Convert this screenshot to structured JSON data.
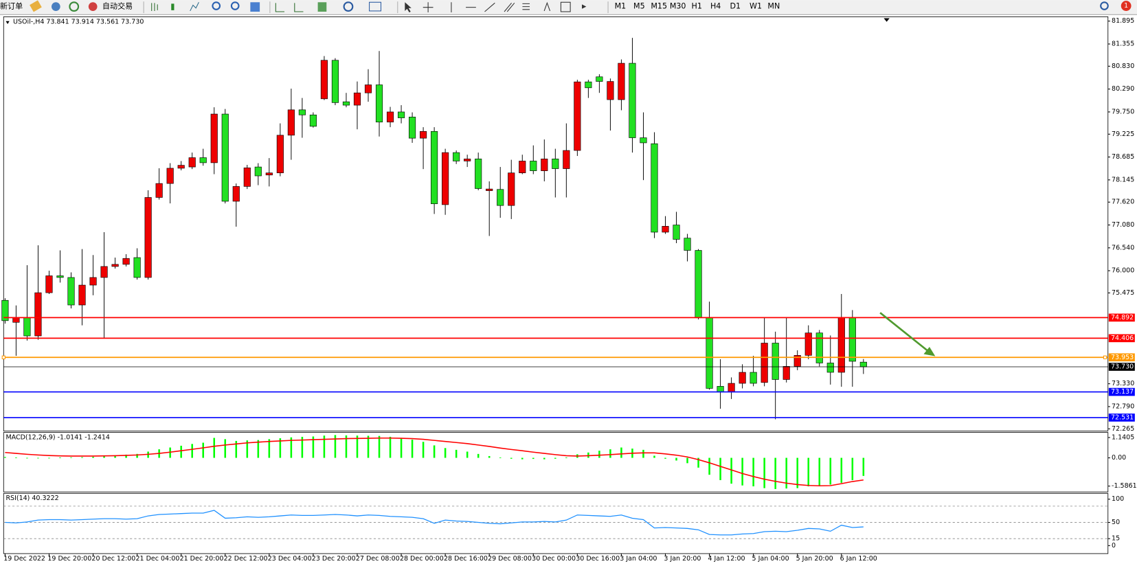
{
  "toolbar": {
    "new_order": "新订单",
    "auto_trading": "自动交易",
    "timeframes": [
      "M1",
      "M5",
      "M15",
      "M30",
      "H1",
      "H4",
      "D1",
      "W1",
      "MN"
    ],
    "notifications": "1"
  },
  "chart_data": [
    {
      "type": "candlestick",
      "title": "USOil-,H4  73.841 73.914 73.561 73.730",
      "categories": [
        "19 Dec 2022",
        null,
        null,
        null,
        "19 Dec 20:00",
        null,
        null,
        null,
        "20 Dec 12:00",
        null,
        null,
        null,
        "21 Dec 04:00",
        null,
        null,
        null,
        "21 Dec 20:00",
        null,
        null,
        null,
        "22 Dec 12:00",
        null,
        null,
        null,
        "23 Dec 04:00",
        null,
        null,
        null,
        "23 Dec 20:00",
        null,
        null,
        null,
        "27 Dec 08:00",
        null,
        null,
        null,
        "28 Dec 00:00",
        null,
        null,
        null,
        "28 Dec 16:00",
        null,
        null,
        null,
        "29 Dec 08:00",
        null,
        null,
        null,
        "30 Dec 00:00",
        null,
        null,
        null,
        "30 Dec 16:00",
        null,
        null,
        null,
        "3 Jan 04:00",
        null,
        null,
        null,
        "3 Jan 20:00",
        null,
        null,
        null,
        "4 Jan 12:00",
        null,
        null,
        null,
        "5 Jan 04:00",
        null,
        null,
        null,
        "5 Jan 20:00",
        null,
        null,
        null,
        "6 Jan 12:00",
        null,
        null
      ],
      "open": [
        75.3,
        74.78,
        74.89,
        74.46,
        75.48,
        75.88,
        75.84,
        75.19,
        75.66,
        75.84,
        76.1,
        76.15,
        76.31,
        75.84,
        77.73,
        78.06,
        78.42,
        78.45,
        78.67,
        78.55,
        79.7,
        77.64,
        77.99,
        78.45,
        78.26,
        78.31,
        79.2,
        79.8,
        79.68,
        80.06,
        80.97,
        79.99,
        79.91,
        80.2,
        80.39,
        79.51,
        79.75,
        79.63,
        79.13,
        79.29,
        77.56,
        78.79,
        78.59,
        78.64,
        77.89,
        77.92,
        77.54,
        78.31,
        78.59,
        78.36,
        78.64,
        78.41,
        78.84,
        80.46,
        80.58,
        80.04,
        80.04,
        80.9,
        79.14,
        79.0,
        76.91,
        77.08,
        76.77,
        76.48,
        74.9,
        73.27,
        73.14,
        73.34,
        73.6,
        73.36,
        74.29,
        73.43,
        73.74,
        74.0,
        74.53,
        73.82,
        73.6,
        74.9,
        73.841
      ],
      "high": [
        75.35,
        75.18,
        76.13,
        76.6,
        76.0,
        76.48,
        75.96,
        76.51,
        76.37,
        76.91,
        76.31,
        76.39,
        76.53,
        77.9,
        78.42,
        78.54,
        78.59,
        78.79,
        78.88,
        79.86,
        79.82,
        78.06,
        78.5,
        78.54,
        78.66,
        79.48,
        80.3,
        80.08,
        79.74,
        81.07,
        81.02,
        80.2,
        80.47,
        80.76,
        81.19,
        79.87,
        79.91,
        79.74,
        79.39,
        79.39,
        78.88,
        78.84,
        78.74,
        78.79,
        78.11,
        78.45,
        78.62,
        78.74,
        78.96,
        79.1,
        78.88,
        79.48,
        80.51,
        80.51,
        80.64,
        80.54,
        80.99,
        81.5,
        79.74,
        79.27,
        77.29,
        77.39,
        76.87,
        76.51,
        75.27,
        73.91,
        73.48,
        73.79,
        73.99,
        74.9,
        74.56,
        74.9,
        74.12,
        74.71,
        74.6,
        74.47,
        75.45,
        75.07,
        73.914
      ],
      "low": [
        74.75,
        73.99,
        74.35,
        74.37,
        75.45,
        75.72,
        75.11,
        74.71,
        75.42,
        74.42,
        76.05,
        76.1,
        75.79,
        75.79,
        77.68,
        77.59,
        78.37,
        78.4,
        78.48,
        78.28,
        77.59,
        77.04,
        77.93,
        78.02,
        77.99,
        78.23,
        78.62,
        79.14,
        79.38,
        80.03,
        79.91,
        79.86,
        79.34,
        79.99,
        79.17,
        79.39,
        79.48,
        79.02,
        78.4,
        77.34,
        77.32,
        78.52,
        78.45,
        77.9,
        76.82,
        77.25,
        77.22,
        78.28,
        78.28,
        78.11,
        77.73,
        77.73,
        78.71,
        80.08,
        80.2,
        79.31,
        79.79,
        78.79,
        78.14,
        76.77,
        76.87,
        76.65,
        76.22,
        74.85,
        73.19,
        72.74,
        72.97,
        73.22,
        73.27,
        73.27,
        72.49,
        73.36,
        73.65,
        73.91,
        73.74,
        73.31,
        73.26,
        73.26,
        73.561
      ],
      "close": [
        74.82,
        74.89,
        74.46,
        75.48,
        75.88,
        75.84,
        75.19,
        75.66,
        75.84,
        76.1,
        76.15,
        76.29,
        75.84,
        77.73,
        78.06,
        78.42,
        78.49,
        78.67,
        78.55,
        79.7,
        77.64,
        77.99,
        78.43,
        78.24,
        78.31,
        79.2,
        79.8,
        79.68,
        79.41,
        80.97,
        79.97,
        79.91,
        80.2,
        80.39,
        79.51,
        79.75,
        79.61,
        79.13,
        79.29,
        77.58,
        78.79,
        78.59,
        78.64,
        77.94,
        77.93,
        77.54,
        78.31,
        78.59,
        78.36,
        78.64,
        78.41,
        78.84,
        80.46,
        80.32,
        80.47,
        80.47,
        80.9,
        79.14,
        79.02,
        76.91,
        77.05,
        76.74,
        76.48,
        74.9,
        73.22,
        73.14,
        73.34,
        73.6,
        73.34,
        74.29,
        73.43,
        73.74,
        74.0,
        74.53,
        73.82,
        73.6,
        74.9,
        73.86,
        73.73
      ],
      "up_color": "#ee0000",
      "down_color": "#22e022",
      "ylim": [
        72.214,
        81.998
      ],
      "yticks": [
        81.895,
        81.355,
        {
          "value": 80.83,
          "label": "80.830"
        },
        {
          "value": 80.29,
          "label": "80.290"
        },
        {
          "value": 79.75,
          "label": "79.750"
        },
        79.225,
        78.685,
        78.145,
        {
          "value": 77.62,
          "label": "77.620"
        },
        {
          "value": 77.08,
          "label": "77.080"
        },
        {
          "value": 76.54,
          "label": "76.540"
        },
        {
          "value": 76,
          "label": "76.000"
        },
        75.475,
        {
          "value": 73.33,
          "label": "73.330"
        },
        {
          "value": 72.79,
          "label": "72.790"
        },
        72.265
      ],
      "hlines": [
        {
          "value": 74.892,
          "color": "#ff0000"
        },
        {
          "value": 74.406,
          "color": "#ff0000"
        },
        {
          "value": 73.953,
          "color": "#ff9900"
        },
        {
          "value": 73.73,
          "label": "73.730",
          "color": "#000000"
        },
        {
          "value": 73.137,
          "color": "#0000ff"
        },
        {
          "value": 72.531,
          "color": "#0000ff"
        }
      ]
    },
    {
      "type": "macd",
      "title": "MACD(12,26,9) -1.0141 -1.2414",
      "histogram": [
        0.05,
        0.02,
        -0.03,
        -0.02,
        0.0,
        0.02,
        0.03,
        0.04,
        0.06,
        0.1,
        0.14,
        0.18,
        0.22,
        0.35,
        0.48,
        0.58,
        0.68,
        0.78,
        0.85,
        1.12,
        1.05,
        0.95,
        0.98,
        1.0,
        1.05,
        1.1,
        1.15,
        1.18,
        1.2,
        1.25,
        1.28,
        1.26,
        1.25,
        1.24,
        1.23,
        1.18,
        1.12,
        1.02,
        0.9,
        0.7,
        0.55,
        0.45,
        0.35,
        0.22,
        0.1,
        0.02,
        -0.05,
        -0.08,
        -0.06,
        -0.08,
        -0.05,
        0.02,
        0.2,
        0.3,
        0.4,
        0.48,
        0.58,
        0.52,
        0.45,
        0.12,
        -0.05,
        -0.15,
        -0.3,
        -0.55,
        -0.95,
        -1.25,
        -1.45,
        -1.55,
        -1.6,
        -1.7,
        -1.75,
        -1.72,
        -1.7,
        -1.6,
        -1.55,
        -1.5,
        -1.4,
        -1.25,
        -1.0141
      ],
      "signal": [
        0.3,
        0.25,
        0.2,
        0.16,
        0.13,
        0.11,
        0.1,
        0.1,
        0.1,
        0.11,
        0.12,
        0.14,
        0.16,
        0.2,
        0.25,
        0.32,
        0.4,
        0.48,
        0.56,
        0.65,
        0.72,
        0.78,
        0.84,
        0.88,
        0.92,
        0.95,
        0.98,
        1.0,
        1.02,
        1.04,
        1.06,
        1.08,
        1.09,
        1.1,
        1.11,
        1.11,
        1.1,
        1.08,
        1.04,
        0.98,
        0.92,
        0.86,
        0.8,
        0.72,
        0.64,
        0.55,
        0.47,
        0.4,
        0.32,
        0.25,
        0.18,
        0.12,
        0.1,
        0.12,
        0.15,
        0.18,
        0.22,
        0.26,
        0.28,
        0.28,
        0.22,
        0.15,
        0.05,
        -0.1,
        -0.28,
        -0.48,
        -0.68,
        -0.88,
        -1.05,
        -1.2,
        -1.32,
        -1.42,
        -1.5,
        -1.55,
        -1.57,
        -1.56,
        -1.45,
        -1.33,
        -1.2414
      ],
      "histogram_color": "#00ff00",
      "signal_color": "#ff0000",
      "ylim": [
        -1.914,
        1.426
      ],
      "yticks": [
        1.1405,
        {
          "value": 0,
          "label": "0.00"
        },
        -1.5861
      ]
    },
    {
      "type": "line",
      "title": "RSI(14) 40.3222",
      "values": [
        50,
        49,
        51,
        55,
        56,
        56,
        55,
        56,
        57,
        58,
        58,
        57,
        58,
        64,
        67,
        68,
        69,
        70,
        70,
        76,
        59,
        60,
        62,
        61,
        62,
        64,
        66,
        65,
        65,
        66,
        67,
        66,
        64,
        66,
        65,
        63,
        62,
        61,
        58,
        48,
        55,
        53,
        52,
        50,
        48,
        47,
        49,
        51,
        51,
        52,
        51,
        55,
        66,
        65,
        64,
        63,
        66,
        59,
        56,
        38,
        39,
        38,
        37,
        34,
        24,
        23,
        23,
        25,
        26,
        30,
        31,
        30,
        33,
        37,
        36,
        31,
        44,
        39,
        40.3222
      ],
      "color": "#1e90ff",
      "ylim": [
        -17.2,
        112.5
      ],
      "yticks": [
        100,
        50,
        15,
        0
      ],
      "levels": [
        85,
        50,
        15
      ]
    }
  ]
}
